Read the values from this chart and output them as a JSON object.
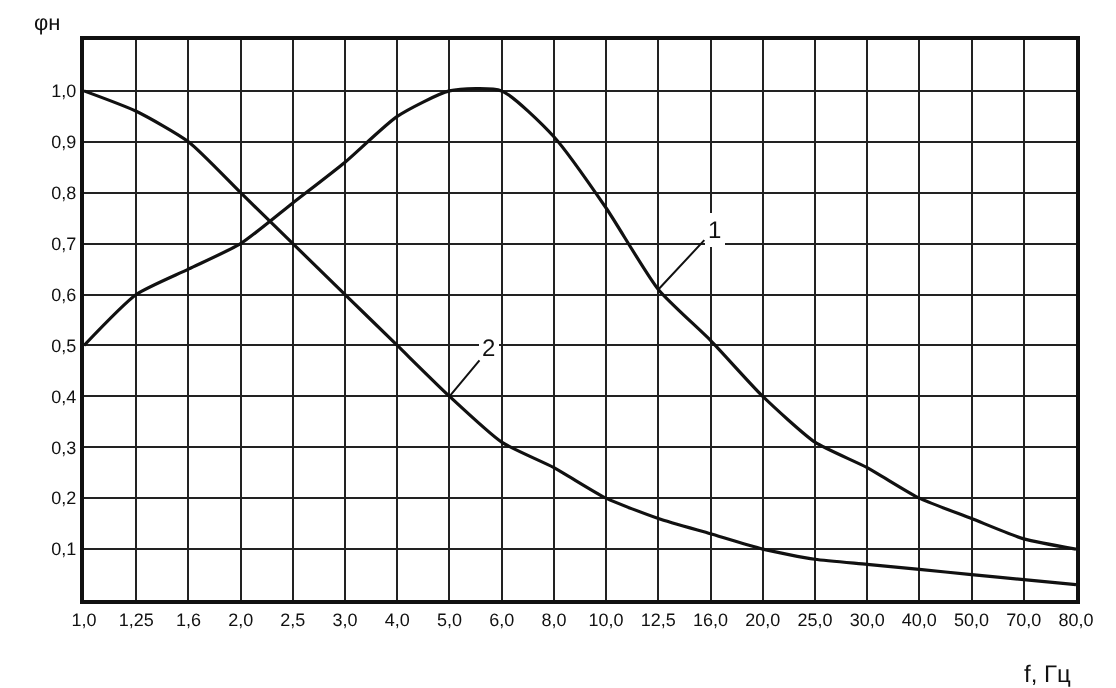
{
  "chart_data": {
    "type": "line",
    "xlabel": "f, Гц",
    "ylabel": "φн",
    "categories": [
      "1,0",
      "1,25",
      "1,6",
      "2,0",
      "2,5",
      "3,0",
      "4,0",
      "5,0",
      "6,0",
      "8,0",
      "10,0",
      "12,5",
      "16,0",
      "20,0",
      "25,0",
      "30,0",
      "40,0",
      "50,0",
      "70,0",
      "80,0"
    ],
    "series": [
      {
        "color": "#111111",
        "values": [
          0.5,
          0.6,
          0.65,
          0.7,
          0.78,
          0.86,
          0.95,
          1.0,
          1.0,
          0.91,
          0.77,
          0.61,
          0.51,
          0.4,
          0.31,
          0.26,
          0.2,
          0.16,
          0.12,
          0.1
        ]
      },
      {
        "color": "#111111",
        "values": [
          1.0,
          0.96,
          0.9,
          0.8,
          0.7,
          0.6,
          0.5,
          0.4,
          0.31,
          0.26,
          0.2,
          0.16,
          0.13,
          0.1,
          0.08,
          0.07,
          0.06,
          0.05,
          0.04,
          0.03
        ]
      }
    ],
    "ylim": [
      0,
      1.1
    ],
    "yticks": [
      {
        "value": 0.1,
        "label": "0,1"
      },
      {
        "value": 0.2,
        "label": "0,2"
      },
      {
        "value": 0.3,
        "label": "0,3"
      },
      {
        "value": 0.4,
        "label": "0,4"
      },
      {
        "value": 0.5,
        "label": "0,5"
      },
      {
        "value": 0.6,
        "label": "0,6"
      },
      {
        "value": 0.7,
        "label": "0,7"
      },
      {
        "value": 0.8,
        "label": "0,8"
      },
      {
        "value": 0.9,
        "label": "0,9"
      },
      {
        "value": 1.0,
        "label": "1,0"
      }
    ],
    "grid": true,
    "marker": "none",
    "line_style": "solid",
    "annotations": [
      {
        "text": "1",
        "x": "12,5",
        "y": 0.61
      },
      {
        "text": "2",
        "x": "5,0",
        "y": 0.4
      }
    ]
  }
}
